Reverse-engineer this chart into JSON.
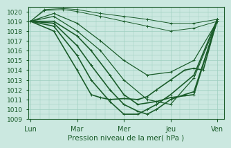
{
  "title": "",
  "xlabel": "Pression niveau de la mer( hPa )",
  "ylabel": "",
  "background_color": "#cbe8e0",
  "grid_color": "#9ecfbf",
  "line_color": "#1a5c2a",
  "ylim": [
    1009.0,
    1020.5
  ],
  "yticks": [
    1009,
    1010,
    1011,
    1012,
    1013,
    1014,
    1015,
    1016,
    1017,
    1018,
    1019,
    1020
  ],
  "xtick_labels": [
    "Lun",
    "Mar",
    "Mer",
    "Jeu",
    "Ven"
  ],
  "xtick_positions": [
    0,
    1,
    2,
    3,
    4
  ],
  "lines": [
    {
      "x": [
        0,
        0.3,
        0.7,
        1.0,
        1.5,
        2.0,
        2.5,
        3.0,
        3.5,
        4.0
      ],
      "y": [
        1019.0,
        1020.2,
        1020.3,
        1020.2,
        1019.8,
        1019.5,
        1019.2,
        1018.8,
        1018.8,
        1019.2
      ]
    },
    {
      "x": [
        0,
        0.3,
        0.7,
        1.0,
        1.5,
        2.0,
        2.5,
        3.0,
        3.5,
        4.0
      ],
      "y": [
        1019.0,
        1020.1,
        1020.2,
        1020.0,
        1019.5,
        1019.0,
        1018.5,
        1018.0,
        1018.3,
        1019.0
      ]
    },
    {
      "x": [
        0,
        0.5,
        1.0,
        1.5,
        2.0,
        2.5,
        3.0,
        3.5,
        4.0
      ],
      "y": [
        1019.0,
        1019.8,
        1018.8,
        1017.0,
        1015.0,
        1013.5,
        1013.8,
        1015.0,
        1019.0
      ]
    },
    {
      "x": [
        0,
        0.5,
        1.0,
        1.5,
        2.0,
        2.5,
        3.0,
        3.5,
        4.0
      ],
      "y": [
        1019.0,
        1019.5,
        1018.0,
        1016.0,
        1013.0,
        1011.0,
        1010.5,
        1013.2,
        1019.0
      ]
    },
    {
      "x": [
        0,
        0.5,
        1.0,
        1.3,
        1.7,
        2.0,
        2.3,
        2.7,
        3.0,
        3.5,
        4.0
      ],
      "y": [
        1019.0,
        1019.0,
        1017.5,
        1016.0,
        1013.5,
        1011.5,
        1010.5,
        1010.8,
        1011.2,
        1011.5,
        1019.2
      ]
    },
    {
      "x": [
        0,
        0.5,
        1.0,
        1.3,
        1.7,
        2.0,
        2.3,
        2.5,
        2.7,
        3.0,
        3.3,
        3.5,
        4.0
      ],
      "y": [
        1019.0,
        1018.8,
        1016.5,
        1014.5,
        1012.0,
        1010.5,
        1009.8,
        1009.5,
        1010.0,
        1011.0,
        1011.5,
        1011.8,
        1019.0
      ]
    },
    {
      "x": [
        0,
        0.5,
        1.0,
        1.3,
        1.7,
        2.0,
        2.3,
        2.5,
        2.7,
        3.0,
        3.5,
        4.0
      ],
      "y": [
        1019.0,
        1018.5,
        1015.5,
        1013.0,
        1010.8,
        1009.5,
        1009.5,
        1010.0,
        1010.5,
        1011.5,
        1013.5,
        1019.2
      ]
    },
    {
      "x": [
        0,
        0.5,
        1.0,
        1.3,
        1.5,
        1.7,
        2.0,
        2.3,
        2.5,
        2.7,
        3.0,
        3.3,
        3.5,
        3.7,
        4.0
      ],
      "y": [
        1019.0,
        1018.0,
        1014.0,
        1011.5,
        1011.2,
        1011.0,
        1011.1,
        1011.0,
        1011.3,
        1012.0,
        1013.0,
        1014.0,
        1014.2,
        1014.0,
        1019.2
      ]
    }
  ]
}
